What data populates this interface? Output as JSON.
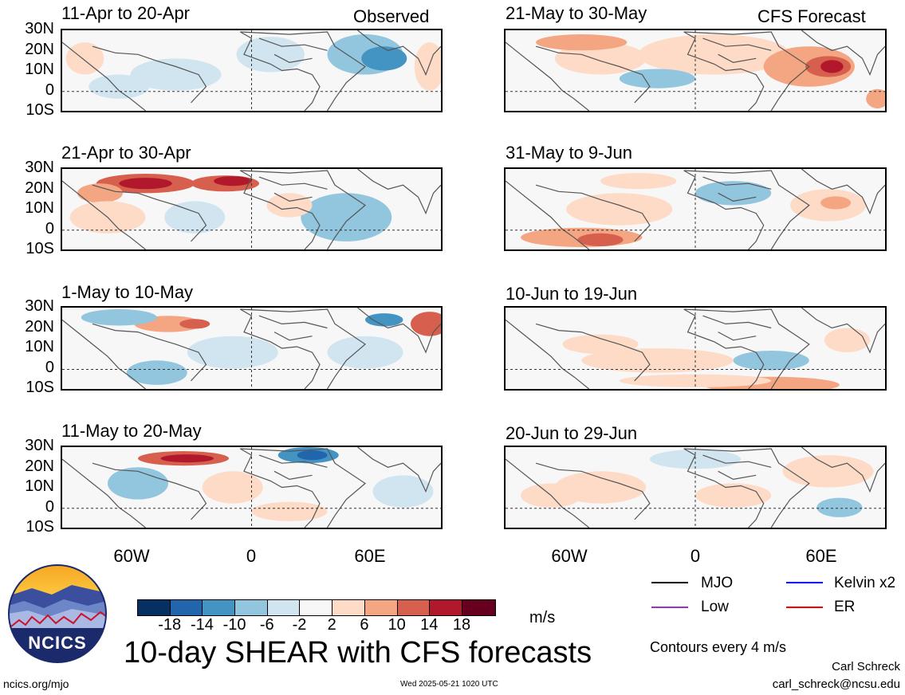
{
  "header": {
    "observed_label": "Observed",
    "forecast_label": "CFS Forecast"
  },
  "panels_left": [
    {
      "title": "11-Apr to 20-Apr"
    },
    {
      "title": "21-Apr to 30-Apr"
    },
    {
      "title": "1-May to 10-May"
    },
    {
      "title": "11-May to 20-May"
    }
  ],
  "panels_right": [
    {
      "title": "21-May to 30-May"
    },
    {
      "title": "31-May to 9-Jun"
    },
    {
      "title": "10-Jun to 19-Jun"
    },
    {
      "title": "20-Jun to 29-Jun"
    }
  ],
  "lat_labels": [
    "30N",
    "20N",
    "10N",
    "0",
    "10S"
  ],
  "lon_labels": [
    "60W",
    "0",
    "60E"
  ],
  "colorbar": {
    "colors": [
      "#053061",
      "#2166ac",
      "#4393c3",
      "#92c5de",
      "#d1e5f0",
      "#f7f7f7",
      "#fddbc7",
      "#f4a582",
      "#d6604d",
      "#b2182b",
      "#67001f"
    ],
    "tick_labels": [
      "-18",
      "-14",
      "-10",
      "-6",
      "-2",
      "2",
      "6",
      "10",
      "14",
      "18"
    ],
    "units": "m/s"
  },
  "legend": {
    "items": [
      {
        "label": "MJO",
        "color": "#000000"
      },
      {
        "label": "Kelvin x2",
        "color": "#0000ff"
      },
      {
        "label": "Low",
        "color": "#9932cc"
      },
      {
        "label": "ER",
        "color": "#ff0000"
      }
    ],
    "contours_note": "Contours every 4 m/s"
  },
  "logo": {
    "text": "NCICS"
  },
  "main_title": "10-day SHEAR with CFS forecasts",
  "footer": {
    "url": "ncics.org/mjo",
    "timestamp": "Wed 2025-05-21 1020 UTC",
    "author": "Carl Schreck",
    "email": "carl_schreck@ncsu.edu"
  }
}
